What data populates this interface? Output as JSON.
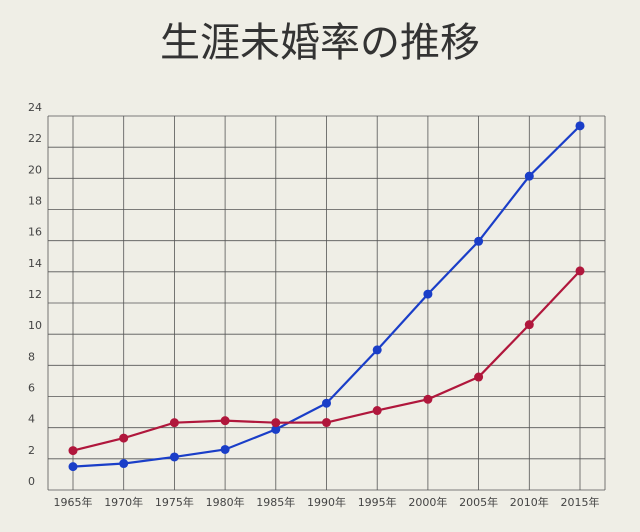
{
  "chart_data": {
    "type": "line",
    "title": "生涯未婚率の推移",
    "categories": [
      "1965年",
      "1970年",
      "1975年",
      "1980年",
      "1985年",
      "1990年",
      "1995年",
      "2000年",
      "2005年",
      "2010年",
      "2015年"
    ],
    "series": [
      {
        "color": "#1a3ec8",
        "values": [
          1.5,
          1.7,
          2.12,
          2.6,
          3.89,
          5.57,
          8.99,
          12.57,
          15.96,
          20.14,
          23.37
        ]
      },
      {
        "color": "#b0173c",
        "values": [
          2.53,
          3.33,
          4.32,
          4.45,
          4.32,
          4.33,
          5.1,
          5.82,
          7.25,
          10.61,
          14.06
        ]
      }
    ],
    "ylim": [
      0,
      24
    ],
    "yticks": [
      0,
      2,
      4,
      6,
      8,
      10,
      12,
      14,
      16,
      18,
      20,
      22,
      24
    ],
    "grid": true
  }
}
